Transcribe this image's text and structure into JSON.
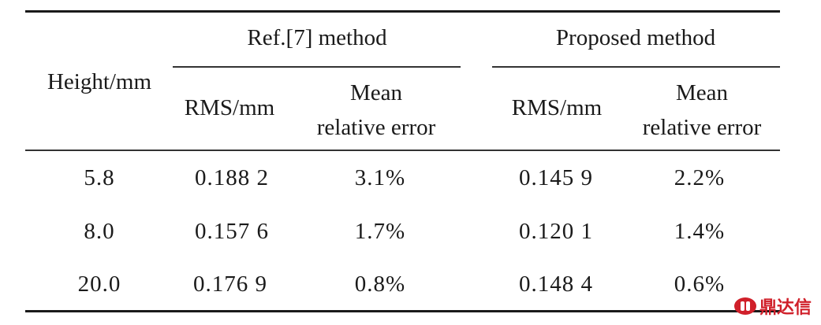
{
  "table": {
    "header": {
      "height": "Height/mm",
      "group1": "Ref.[7] method",
      "group2": "Proposed method",
      "g1_rms": "RMS/mm",
      "g1_mre_line1": "Mean",
      "g1_mre_line2": "relative error",
      "g2_rms": "RMS/mm",
      "g2_mre_line1": "Mean",
      "g2_mre_line2": "relative error"
    },
    "rows": [
      {
        "height": "5.8",
        "ref_rms": "0.188 2",
        "ref_mre": "3.1%",
        "prop_rms": "0.145 9",
        "prop_mre": "2.2%"
      },
      {
        "height": "8.0",
        "ref_rms": "0.157 6",
        "ref_mre": "1.7%",
        "prop_rms": "0.120 1",
        "prop_mre": "1.4%"
      },
      {
        "height": "20.0",
        "ref_rms": "0.176 9",
        "ref_mre": "0.8%",
        "prop_rms": "0.148 4",
        "prop_mre": "0.6%"
      }
    ]
  },
  "watermark": {
    "text": "鼎达信",
    "color": "#d0202a"
  }
}
